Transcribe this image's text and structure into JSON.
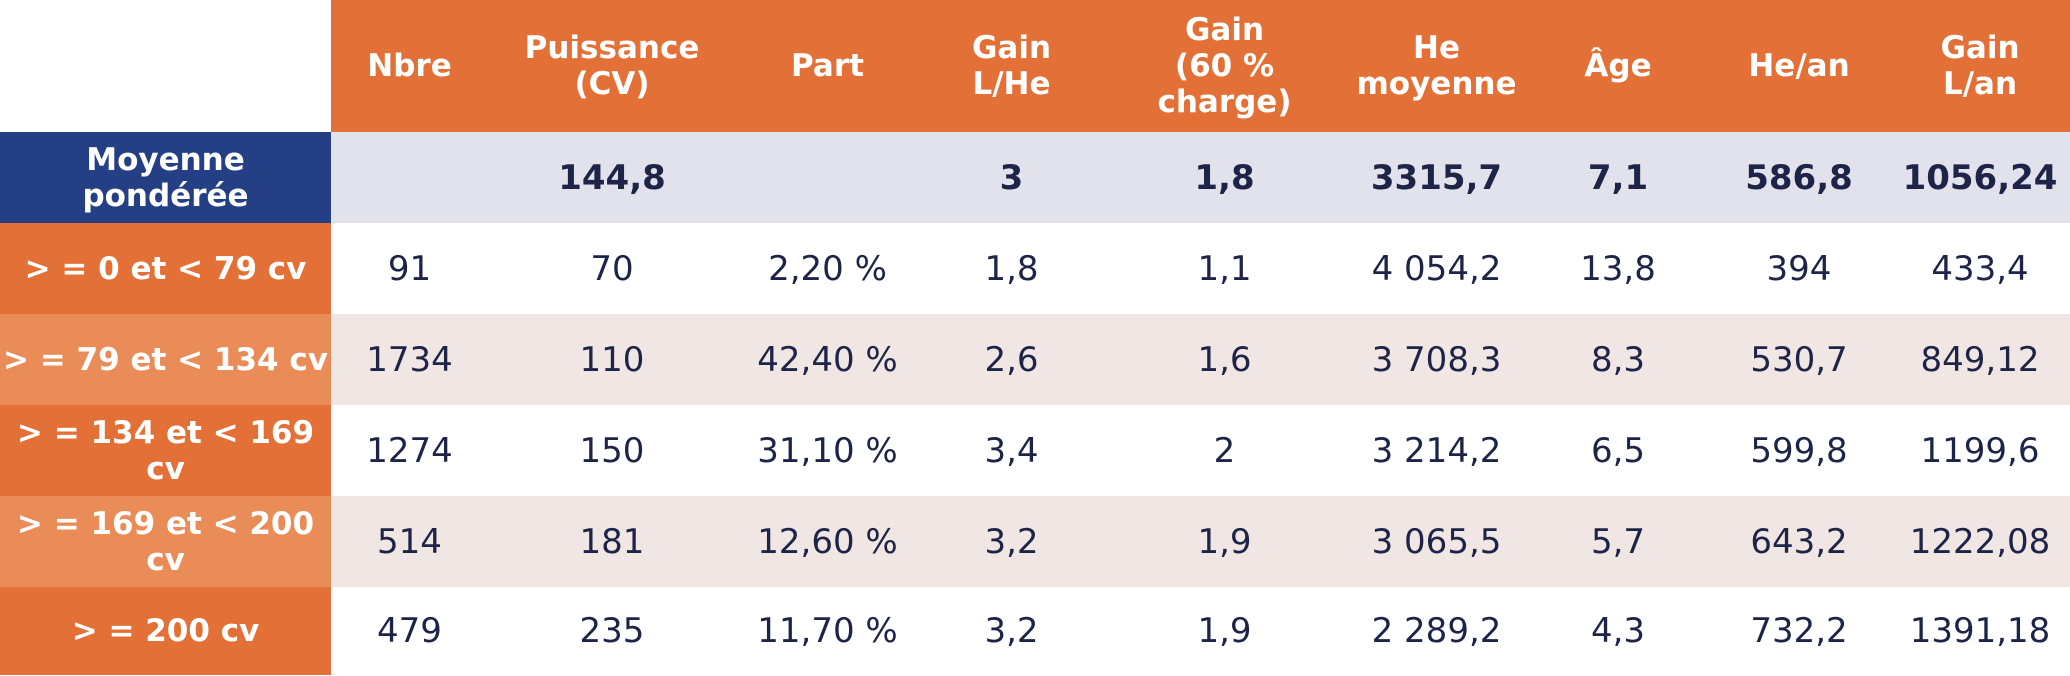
{
  "colors": {
    "header_orange": "#e37036",
    "row_label_orange_dark": "#e37036",
    "row_label_orange_light": "#ea8c58",
    "average_label_blue": "#243f84",
    "average_row_bg": "#e1e2ec",
    "alt_row_bg": "#f0e6e3",
    "text_dark": "#1d2447"
  },
  "table": {
    "columns": [
      {
        "lines": [
          "Nbre"
        ]
      },
      {
        "lines": [
          "Puissance",
          "(CV)"
        ]
      },
      {
        "lines": [
          "Part"
        ]
      },
      {
        "lines": [
          "Gain",
          "L/He"
        ]
      },
      {
        "lines": [
          "Gain",
          "(60 % charge)"
        ]
      },
      {
        "lines": [
          "He",
          "moyenne"
        ]
      },
      {
        "lines": [
          "Âge"
        ]
      },
      {
        "lines": [
          "He/an"
        ]
      },
      {
        "lines": [
          "Gain",
          "L/an"
        ]
      }
    ],
    "average_row": {
      "label": "Moyenne pondérée",
      "cells": [
        "",
        "144,8",
        "",
        "3",
        "1,8",
        "3315,7",
        "7,1",
        "586,8",
        "1056,24"
      ]
    },
    "rows": [
      {
        "label": "> = 0 et < 79 cv",
        "cells": [
          "91",
          "70",
          "2,20 %",
          "1,8",
          "1,1",
          "4 054,2",
          "13,8",
          "394",
          "433,4"
        ]
      },
      {
        "label": "> = 79 et < 134 cv",
        "cells": [
          "1734",
          "110",
          "42,40 %",
          "2,6",
          "1,6",
          "3 708,3",
          "8,3",
          "530,7",
          "849,12"
        ]
      },
      {
        "label": "> = 134 et < 169 cv",
        "cells": [
          "1274",
          "150",
          "31,10 %",
          "3,4",
          "2",
          "3 214,2",
          "6,5",
          "599,8",
          "1199,6"
        ]
      },
      {
        "label": "> = 169 et < 200 cv",
        "cells": [
          "514",
          "181",
          "12,60 %",
          "3,2",
          "1,9",
          "3 065,5",
          "5,7",
          "643,2",
          "1222,08"
        ]
      },
      {
        "label": "> = 200 cv",
        "cells": [
          "479",
          "235",
          "11,70 %",
          "3,2",
          "1,9",
          "2 289,2",
          "4,3",
          "732,2",
          "1391,18"
        ]
      }
    ]
  }
}
